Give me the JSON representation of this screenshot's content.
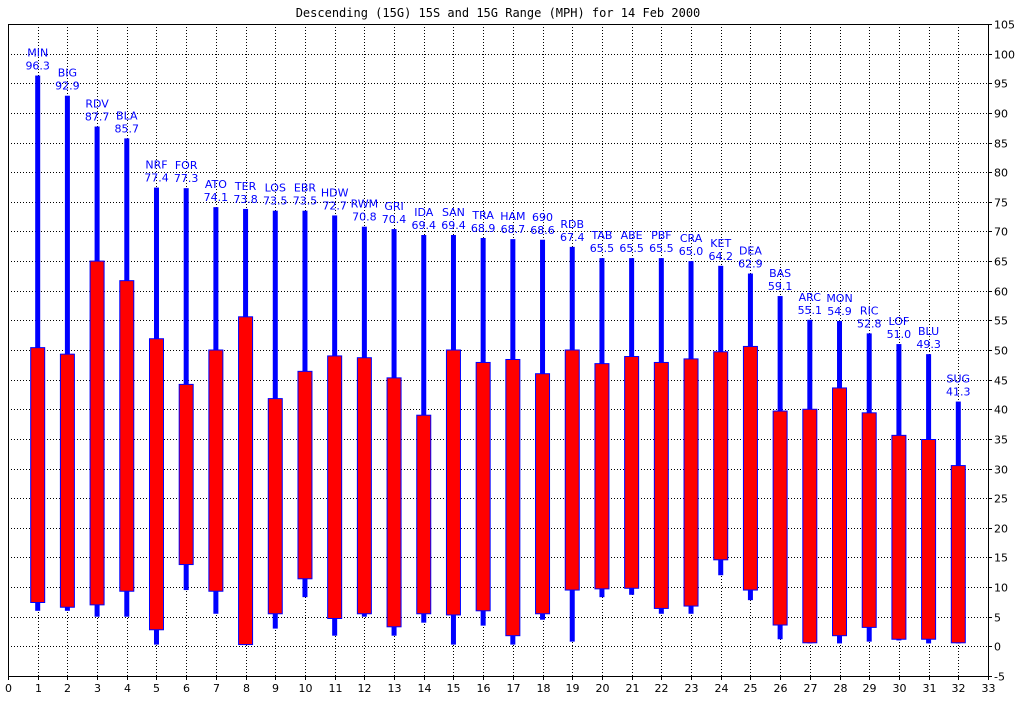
{
  "chart_data": {
    "type": "bar",
    "title": "Descending (15G) 15S and 15G Range (MPH) for 14 Feb 2000",
    "xlabel": "",
    "ylabel": "",
    "xlim": [
      0,
      33
    ],
    "ylim": [
      -5,
      105
    ],
    "x_ticks": [
      0,
      1,
      2,
      3,
      4,
      5,
      6,
      7,
      8,
      9,
      10,
      11,
      12,
      13,
      14,
      15,
      16,
      17,
      18,
      19,
      20,
      21,
      22,
      23,
      24,
      25,
      26,
      27,
      28,
      29,
      30,
      31,
      32,
      33
    ],
    "y_ticks": [
      -5,
      0,
      5,
      10,
      15,
      20,
      25,
      30,
      35,
      40,
      45,
      50,
      55,
      60,
      65,
      70,
      75,
      80,
      85,
      90,
      95,
      100,
      105
    ],
    "grid": true,
    "y_axis_side": "right",
    "colors": {
      "gust_range": "#0000ff",
      "sustained_range": "#ff0000",
      "station_label": "#0000ff",
      "grid": "#000000"
    },
    "series": [
      {
        "name": "15G Range",
        "color": "#0000ff"
      },
      {
        "name": "15S Range",
        "color": "#ff0000"
      }
    ],
    "stations": [
      {
        "x": 1,
        "code": "MIN",
        "max_label": "96.3",
        "gust_min": 6.0,
        "gust_max": 96.3,
        "sust_min": 7.4,
        "sust_max": 50.4
      },
      {
        "x": 2,
        "code": "BIG",
        "max_label": "92.9",
        "gust_min": 6.0,
        "gust_max": 92.9,
        "sust_min": 6.6,
        "sust_max": 49.3
      },
      {
        "x": 3,
        "code": "RDV",
        "max_label": "87.7",
        "gust_min": 5.0,
        "gust_max": 87.7,
        "sust_min": 7.0,
        "sust_max": 65.0
      },
      {
        "x": 4,
        "code": "BLA",
        "max_label": "85.7",
        "gust_min": 5.0,
        "gust_max": 85.7,
        "sust_min": 9.3,
        "sust_max": 61.7
      },
      {
        "x": 5,
        "code": "NRF",
        "max_label": "77.4",
        "gust_min": 0.3,
        "gust_max": 77.4,
        "sust_min": 2.8,
        "sust_max": 51.9
      },
      {
        "x": 6,
        "code": "FOR",
        "max_label": "77.3",
        "gust_min": 9.5,
        "gust_max": 77.3,
        "sust_min": 13.8,
        "sust_max": 44.2
      },
      {
        "x": 7,
        "code": "ATO",
        "max_label": "74.1",
        "gust_min": 5.5,
        "gust_max": 74.1,
        "sust_min": 9.3,
        "sust_max": 50.0
      },
      {
        "x": 8,
        "code": "TER",
        "max_label": "73.8",
        "gust_min": 0.3,
        "gust_max": 73.8,
        "sust_min": 0.3,
        "sust_max": 55.6
      },
      {
        "x": 9,
        "code": "LOS",
        "max_label": "73.5",
        "gust_min": 3.0,
        "gust_max": 73.5,
        "sust_min": 5.5,
        "sust_max": 41.8
      },
      {
        "x": 10,
        "code": "EBR",
        "max_label": "73.5",
        "gust_min": 8.3,
        "gust_max": 73.5,
        "sust_min": 11.4,
        "sust_max": 46.4
      },
      {
        "x": 11,
        "code": "HDW",
        "max_label": "72.7",
        "gust_min": 1.8,
        "gust_max": 72.7,
        "sust_min": 4.7,
        "sust_max": 49.0
      },
      {
        "x": 12,
        "code": "RWM",
        "max_label": "70.8",
        "gust_min": 5.0,
        "gust_max": 70.8,
        "sust_min": 5.5,
        "sust_max": 48.7
      },
      {
        "x": 13,
        "code": "GRI",
        "max_label": "70.4",
        "gust_min": 1.8,
        "gust_max": 70.4,
        "sust_min": 3.3,
        "sust_max": 45.3
      },
      {
        "x": 14,
        "code": "IDA",
        "max_label": "69.4",
        "gust_min": 4.0,
        "gust_max": 69.4,
        "sust_min": 5.5,
        "sust_max": 39.0
      },
      {
        "x": 15,
        "code": "SAN",
        "max_label": "69.4",
        "gust_min": 0.3,
        "gust_max": 69.4,
        "sust_min": 5.3,
        "sust_max": 50.0
      },
      {
        "x": 16,
        "code": "TRA",
        "max_label": "68.9",
        "gust_min": 3.5,
        "gust_max": 68.9,
        "sust_min": 6.0,
        "sust_max": 47.9
      },
      {
        "x": 17,
        "code": "HAM",
        "max_label": "68.7",
        "gust_min": 0.3,
        "gust_max": 68.7,
        "sust_min": 1.8,
        "sust_max": 48.4
      },
      {
        "x": 18,
        "code": "690",
        "max_label": "68.6",
        "gust_min": 4.5,
        "gust_max": 68.6,
        "sust_min": 5.5,
        "sust_max": 46.0
      },
      {
        "x": 19,
        "code": "RDB",
        "max_label": "67.4",
        "gust_min": 0.8,
        "gust_max": 67.4,
        "sust_min": 9.5,
        "sust_max": 50.0
      },
      {
        "x": 20,
        "code": "TAB",
        "max_label": "65.5",
        "gust_min": 8.3,
        "gust_max": 65.5,
        "sust_min": 9.7,
        "sust_max": 47.7
      },
      {
        "x": 21,
        "code": "ABE",
        "max_label": "65.5",
        "gust_min": 8.7,
        "gust_max": 65.5,
        "sust_min": 9.8,
        "sust_max": 48.9
      },
      {
        "x": 22,
        "code": "PBF",
        "max_label": "65.5",
        "gust_min": 5.5,
        "gust_max": 65.5,
        "sust_min": 6.4,
        "sust_max": 47.9
      },
      {
        "x": 23,
        "code": "CRA",
        "max_label": "65.0",
        "gust_min": 5.5,
        "gust_max": 65.0,
        "sust_min": 6.8,
        "sust_max": 48.5
      },
      {
        "x": 24,
        "code": "KET",
        "max_label": "64.2",
        "gust_min": 12.0,
        "gust_max": 64.2,
        "sust_min": 14.6,
        "sust_max": 49.7
      },
      {
        "x": 25,
        "code": "DEA",
        "max_label": "62.9",
        "gust_min": 7.8,
        "gust_max": 62.9,
        "sust_min": 9.5,
        "sust_max": 50.6
      },
      {
        "x": 26,
        "code": "BAS",
        "max_label": "59.1",
        "gust_min": 1.2,
        "gust_max": 59.1,
        "sust_min": 3.6,
        "sust_max": 39.7
      },
      {
        "x": 27,
        "code": "ARC",
        "max_label": "55.1",
        "gust_min": 0.5,
        "gust_max": 55.1,
        "sust_min": 0.6,
        "sust_max": 40.0
      },
      {
        "x": 28,
        "code": "MON",
        "max_label": "54.9",
        "gust_min": 0.5,
        "gust_max": 54.9,
        "sust_min": 1.8,
        "sust_max": 43.6
      },
      {
        "x": 29,
        "code": "RIC",
        "max_label": "52.8",
        "gust_min": 0.8,
        "gust_max": 52.8,
        "sust_min": 3.2,
        "sust_max": 39.4
      },
      {
        "x": 30,
        "code": "LOF",
        "max_label": "51.0",
        "gust_min": 1.0,
        "gust_max": 51.0,
        "sust_min": 1.2,
        "sust_max": 35.6
      },
      {
        "x": 31,
        "code": "BLU",
        "max_label": "49.3",
        "gust_min": 0.5,
        "gust_max": 49.3,
        "sust_min": 1.2,
        "sust_max": 34.9
      },
      {
        "x": 32,
        "code": "SUG",
        "max_label": "41.3",
        "gust_min": 0.5,
        "gust_max": 41.3,
        "sust_min": 0.6,
        "sust_max": 30.5
      }
    ]
  }
}
